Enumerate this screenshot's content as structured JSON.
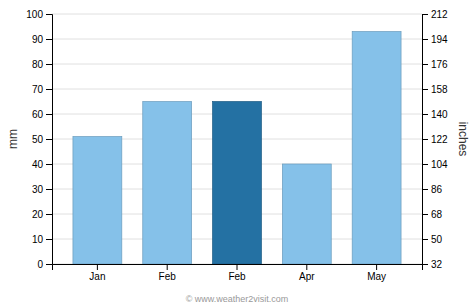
{
  "chart_data": {
    "type": "bar",
    "categories": [
      "Jan",
      "Feb",
      "Feb",
      "Apr",
      "May"
    ],
    "values": [
      51,
      65,
      65,
      40,
      93
    ],
    "colors": [
      "#85c1e9",
      "#85c1e9",
      "#2471a3",
      "#85c1e9",
      "#85c1e9"
    ],
    "ylabel": "mm",
    "y2label": "inches",
    "ylim": [
      0,
      100
    ],
    "yticks": [
      0,
      10,
      20,
      30,
      40,
      50,
      60,
      70,
      80,
      90,
      100
    ],
    "y2lim": [
      32,
      212
    ],
    "y2ticks": [
      32,
      50,
      68,
      86,
      104,
      122,
      140,
      158,
      176,
      194,
      212
    ],
    "grid": true,
    "annotations": [
      "© www.weather2visit.com"
    ]
  }
}
